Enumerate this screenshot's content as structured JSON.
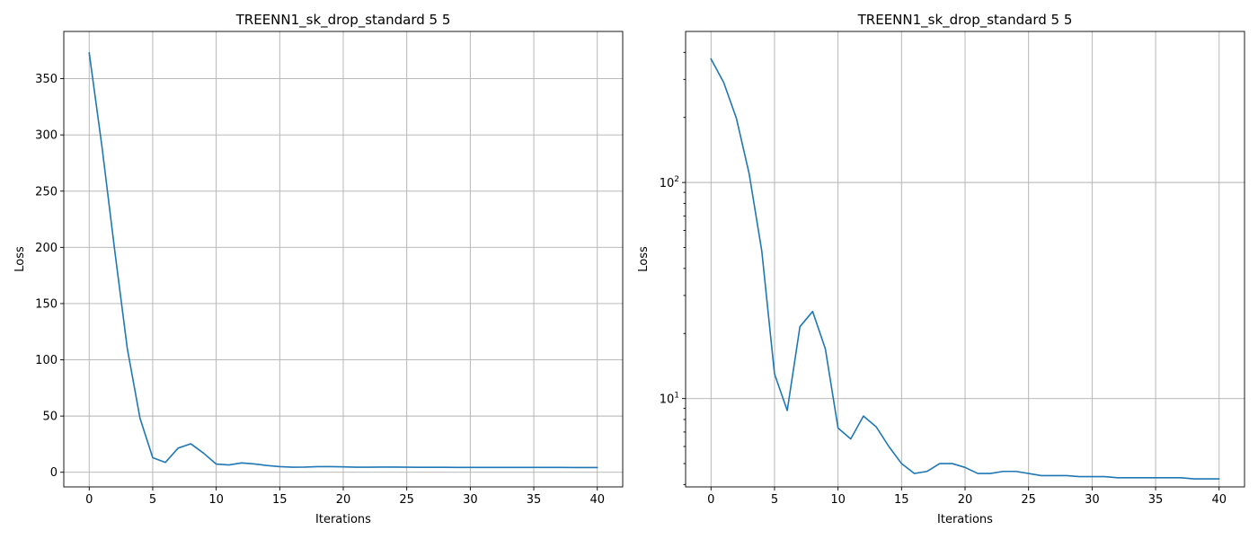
{
  "chart_data": [
    {
      "type": "line",
      "title": "TREENN1_sk_drop_standard 5 5",
      "xlabel": "Iterations",
      "ylabel": "Loss",
      "yscale": "linear",
      "grid": true,
      "xlim": [
        -2,
        42
      ],
      "ylim": [
        -13,
        392
      ],
      "xticks": [
        0,
        5,
        10,
        15,
        20,
        25,
        30,
        35,
        40
      ],
      "xtick_labels": [
        "0",
        "5",
        "10",
        "15",
        "20",
        "25",
        "30",
        "35",
        "40"
      ],
      "yticks": [
        0,
        50,
        100,
        150,
        200,
        250,
        300,
        350
      ],
      "ytick_labels": [
        "0",
        "50",
        "100",
        "150",
        "200",
        "250",
        "300",
        "350"
      ],
      "series": [
        {
          "color": "#1f77b4",
          "x": [
            0,
            1,
            2,
            3,
            4,
            5,
            6,
            7,
            8,
            9,
            10,
            11,
            12,
            13,
            14,
            15,
            16,
            17,
            18,
            19,
            20,
            21,
            22,
            23,
            24,
            25,
            26,
            27,
            28,
            29,
            30,
            31,
            32,
            33,
            34,
            35,
            36,
            37,
            38,
            39,
            40
          ],
          "y": [
            373,
            290,
            198,
            110,
            48,
            13,
            8.8,
            21.5,
            25.3,
            17,
            7.3,
            6.5,
            8.3,
            7.4,
            6,
            5,
            4.5,
            4.6,
            5,
            5,
            4.8,
            4.5,
            4.5,
            4.6,
            4.6,
            4.5,
            4.4,
            4.4,
            4.4,
            4.35,
            4.35,
            4.35,
            4.3,
            4.3,
            4.3,
            4.3,
            4.3,
            4.3,
            4.25,
            4.25,
            4.25
          ]
        }
      ]
    },
    {
      "type": "line",
      "title": "TREENN1_sk_drop_standard 5 5",
      "xlabel": "Iterations",
      "ylabel": "Loss",
      "yscale": "log",
      "grid": true,
      "xlim": [
        -2,
        42
      ],
      "ylim": [
        3.9,
        500
      ],
      "xticks": [
        0,
        5,
        10,
        15,
        20,
        25,
        30,
        35,
        40
      ],
      "xtick_labels": [
        "0",
        "5",
        "10",
        "15",
        "20",
        "25",
        "30",
        "35",
        "40"
      ],
      "yticks_major": [
        10,
        100
      ],
      "yticks_major_labels": [
        {
          "base": "10",
          "exp": "1"
        },
        {
          "base": "10",
          "exp": "2"
        }
      ],
      "yticks_minor": [
        4,
        5,
        6,
        7,
        8,
        9,
        20,
        30,
        40,
        50,
        60,
        70,
        80,
        90,
        200,
        300,
        400
      ],
      "series": [
        {
          "color": "#1f77b4",
          "x": [
            0,
            1,
            2,
            3,
            4,
            5,
            6,
            7,
            8,
            9,
            10,
            11,
            12,
            13,
            14,
            15,
            16,
            17,
            18,
            19,
            20,
            21,
            22,
            23,
            24,
            25,
            26,
            27,
            28,
            29,
            30,
            31,
            32,
            33,
            34,
            35,
            36,
            37,
            38,
            39,
            40
          ],
          "y": [
            373,
            290,
            198,
            110,
            48,
            13,
            8.8,
            21.5,
            25.3,
            17,
            7.3,
            6.5,
            8.3,
            7.4,
            6,
            5,
            4.5,
            4.6,
            5,
            5,
            4.8,
            4.5,
            4.5,
            4.6,
            4.6,
            4.5,
            4.4,
            4.4,
            4.4,
            4.35,
            4.35,
            4.35,
            4.3,
            4.3,
            4.3,
            4.3,
            4.3,
            4.3,
            4.25,
            4.25,
            4.25
          ]
        }
      ]
    }
  ]
}
